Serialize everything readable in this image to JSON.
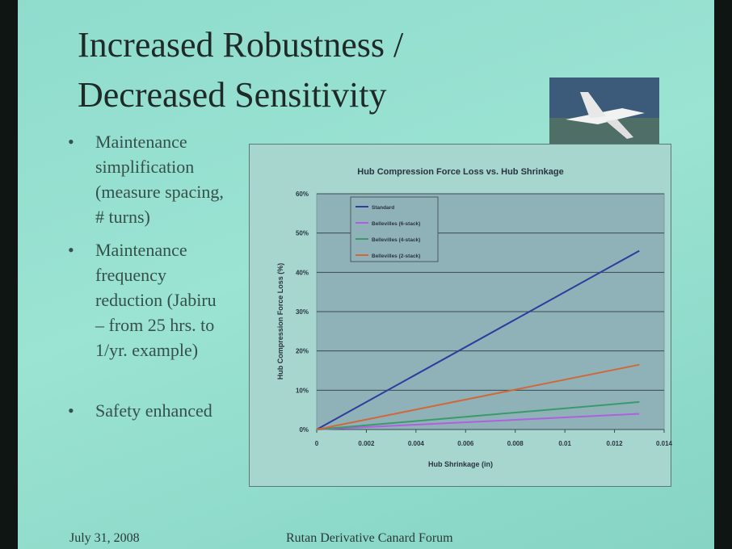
{
  "slide": {
    "title": [
      "Increased Robustness /",
      "Decreased Sensitivity"
    ],
    "bullets": [
      "Maintenance simplification (measure spacing, # turns)",
      "Maintenance frequency reduction (Jabiru – from 25 hrs. to 1/yr. example)",
      "Safety enhanced"
    ],
    "footer": {
      "date": "July 31, 2008",
      "event": "Rutan Derivative Canard Forum"
    }
  },
  "chart_data": {
    "type": "line",
    "title": "Hub Compression Force Loss vs. Hub Shrinkage",
    "x_label": "Hub Shrinkage (in)",
    "y_label": "Hub Compression Force Loss (%)",
    "x": [
      0,
      0.013
    ],
    "series": [
      {
        "name": "Standard",
        "color": "#2e3c9e",
        "values": [
          0,
          45.5
        ]
      },
      {
        "name": "Bellevilles (6-stack)",
        "color": "#b25ee0",
        "values": [
          0,
          4
        ]
      },
      {
        "name": "Bellevilles (4-stack)",
        "color": "#3a9a6c",
        "values": [
          0,
          7
        ]
      },
      {
        "name": "Bellevilles (2-stack)",
        "color": "#d0683a",
        "values": [
          0,
          16.5
        ]
      }
    ],
    "xlim": [
      0,
      0.014
    ],
    "xticks": [
      0,
      0.002,
      0.004,
      0.006,
      0.008,
      0.01,
      0.012,
      0.014
    ],
    "ylim": [
      0,
      60
    ],
    "yticks": [
      {
        "value": 0,
        "label": "0%"
      },
      {
        "value": 10,
        "label": "10%"
      },
      {
        "value": 20,
        "label": "20%"
      },
      {
        "value": 30,
        "label": "30%"
      },
      {
        "value": 40,
        "label": "40%"
      },
      {
        "value": 50,
        "label": "50%"
      },
      {
        "value": 60,
        "label": "60%"
      }
    ],
    "grid": true,
    "legend": "top-left"
  }
}
